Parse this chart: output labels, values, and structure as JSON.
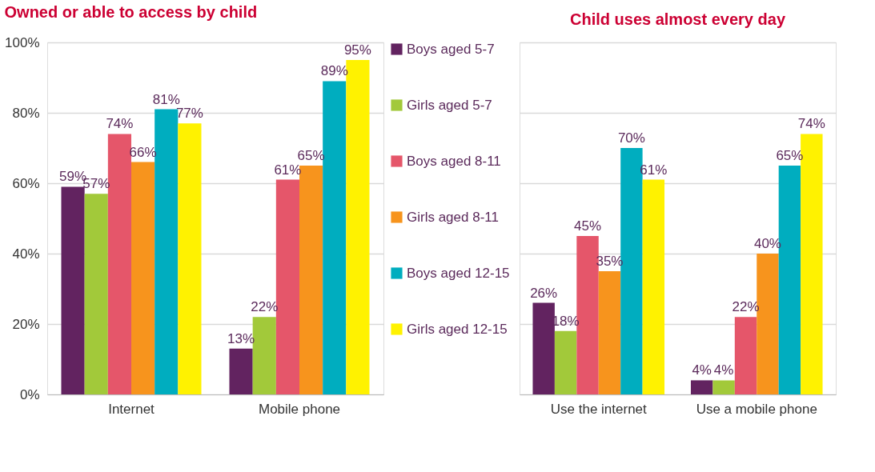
{
  "chart_data": [
    {
      "type": "bar",
      "title": "Owned or able to access by child",
      "categories": [
        "Internet",
        "Mobile phone"
      ],
      "series": [
        {
          "name": "Boys aged 5-7",
          "color": "#622360",
          "values": [
            59,
            13
          ],
          "value_labels": [
            "59%",
            "13%"
          ]
        },
        {
          "name": "Girls aged 5-7",
          "color": "#a2c93a",
          "values": [
            57,
            22
          ],
          "value_labels": [
            "57%",
            "22%"
          ]
        },
        {
          "name": "Boys aged 8-11",
          "color": "#e5566a",
          "values": [
            74,
            61
          ],
          "value_labels": [
            "74%",
            "61%"
          ]
        },
        {
          "name": "Girls aged 8-11",
          "color": "#f7941d",
          "values": [
            66,
            65
          ],
          "value_labels": [
            "66%",
            "65%"
          ]
        },
        {
          "name": "Boys aged 12-15",
          "color": "#00adbf",
          "values": [
            81,
            89
          ],
          "value_labels": [
            "81%",
            "89%"
          ]
        },
        {
          "name": "Girls aged 12-15",
          "color": "#fff200",
          "values": [
            77,
            95
          ],
          "value_labels": [
            "77%",
            "95%"
          ]
        }
      ],
      "ylim": [
        0,
        100
      ],
      "yticks": [
        {
          "value": 0,
          "label": "0%"
        },
        {
          "value": 20,
          "label": "20%"
        },
        {
          "value": 40,
          "label": "40%"
        },
        {
          "value": 60,
          "label": "60%"
        },
        {
          "value": 80,
          "label": "80%"
        },
        {
          "value": 100,
          "label": "100%"
        }
      ],
      "grid": "y",
      "legend": "right"
    },
    {
      "type": "bar",
      "title": "Child uses almost every day",
      "categories": [
        "Use the internet",
        "Use a mobile phone"
      ],
      "series": [
        {
          "color": "#622360",
          "values": [
            26,
            4
          ],
          "value_labels": [
            "26%",
            "4%"
          ]
        },
        {
          "color": "#a2c93a",
          "values": [
            18,
            4
          ],
          "value_labels": [
            "18%",
            "4%"
          ]
        },
        {
          "color": "#e5566a",
          "values": [
            45,
            22
          ],
          "value_labels": [
            "45%",
            "22%"
          ]
        },
        {
          "color": "#f7941d",
          "values": [
            35,
            40
          ],
          "value_labels": [
            "35%",
            "40%"
          ]
        },
        {
          "color": "#00adbf",
          "values": [
            70,
            65
          ],
          "value_labels": [
            "70%",
            "65%"
          ]
        },
        {
          "color": "#fff200",
          "values": [
            61,
            74
          ],
          "value_labels": [
            "61%",
            "74%"
          ]
        }
      ],
      "ylim": [
        0,
        100
      ],
      "yticks": [
        {
          "value": 0,
          "label": null
        },
        {
          "value": 20,
          "label": null
        },
        {
          "value": 40,
          "label": null
        },
        {
          "value": 60,
          "label": null
        },
        {
          "value": 80,
          "label": null
        },
        {
          "value": 100,
          "label": null
        }
      ],
      "grid": "y",
      "tick_labels": "x"
    }
  ]
}
